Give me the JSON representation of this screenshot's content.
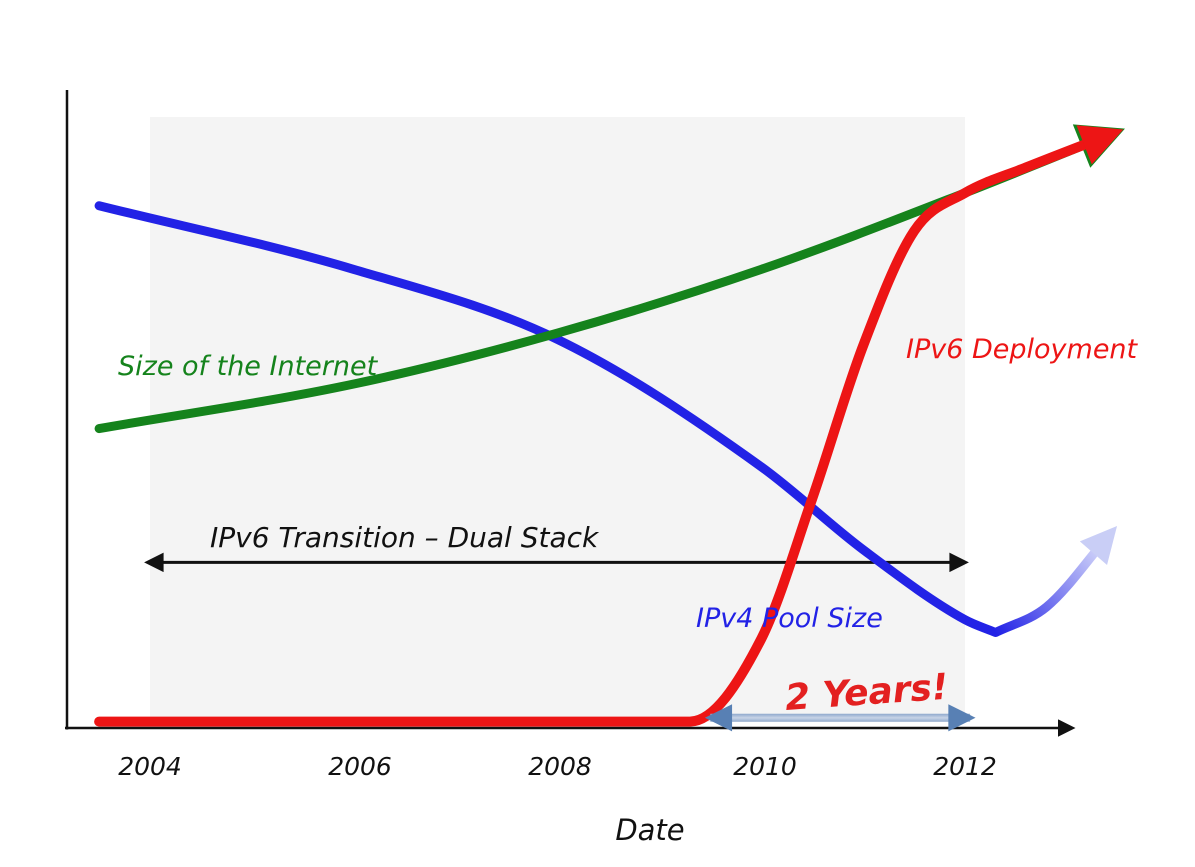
{
  "page": {
    "background": "#ffffff"
  },
  "chart_data": {
    "type": "line",
    "title": "",
    "xlabel": "Date",
    "ylabel": "",
    "x_ticks": [
      "2004",
      "2006",
      "2008",
      "2010",
      "2012"
    ],
    "x_tick_years": [
      2004,
      2006,
      2008,
      2010,
      2012
    ],
    "ylim": [
      0,
      100
    ],
    "grid": false,
    "legend_position": "inline-labels",
    "axis_color": "#111111",
    "shaded_region": {
      "x_years": [
        2004,
        2012
      ],
      "color": "#f4f4f4"
    },
    "series": [
      {
        "name": "IPv4 Pool Size",
        "color": "#2222e6",
        "fade_tail_color": "#e2e5fb",
        "fade_arrow_color": "#c9cef6",
        "x": [
          2003.5,
          2006,
          2008,
          2010,
          2011,
          2012,
          2012.3,
          2012.8,
          2013.4
        ],
        "y": [
          82,
          72,
          61,
          41,
          28,
          17,
          15,
          19,
          30
        ],
        "fade_from_index": 6,
        "arrow_end": true
      },
      {
        "name": "Size of the Internet",
        "color": "#15831c",
        "x": [
          2003.5,
          2006,
          2008,
          2010,
          2012,
          2013.4
        ],
        "y": [
          47,
          54,
          62,
          72,
          84,
          93
        ],
        "arrow_end": true
      },
      {
        "name": "IPv6 Deployment",
        "color": "#ed1515",
        "x": [
          2003.5,
          2005,
          2007,
          2009.3,
          2010,
          2010.5,
          2011,
          2011.5,
          2012,
          2012.6,
          2013.4
        ],
        "y": [
          1,
          1,
          1,
          1,
          14,
          36,
          60,
          78,
          84,
          88,
          93
        ],
        "arrow_end": true
      }
    ],
    "annotations": {
      "transition_arrow": {
        "label": "IPv6 Transition – Dual Stack",
        "x_years": [
          2004,
          2012
        ],
        "value": 26,
        "color": "#111111"
      },
      "two_years_arrow": {
        "label": "2 Years!",
        "x_years": [
          2009.5,
          2012.05
        ],
        "value": 1.6,
        "arrow_color": "#5880b4",
        "arrow_highlight": "#c7d3e6",
        "label_color": "#e32020"
      }
    }
  }
}
